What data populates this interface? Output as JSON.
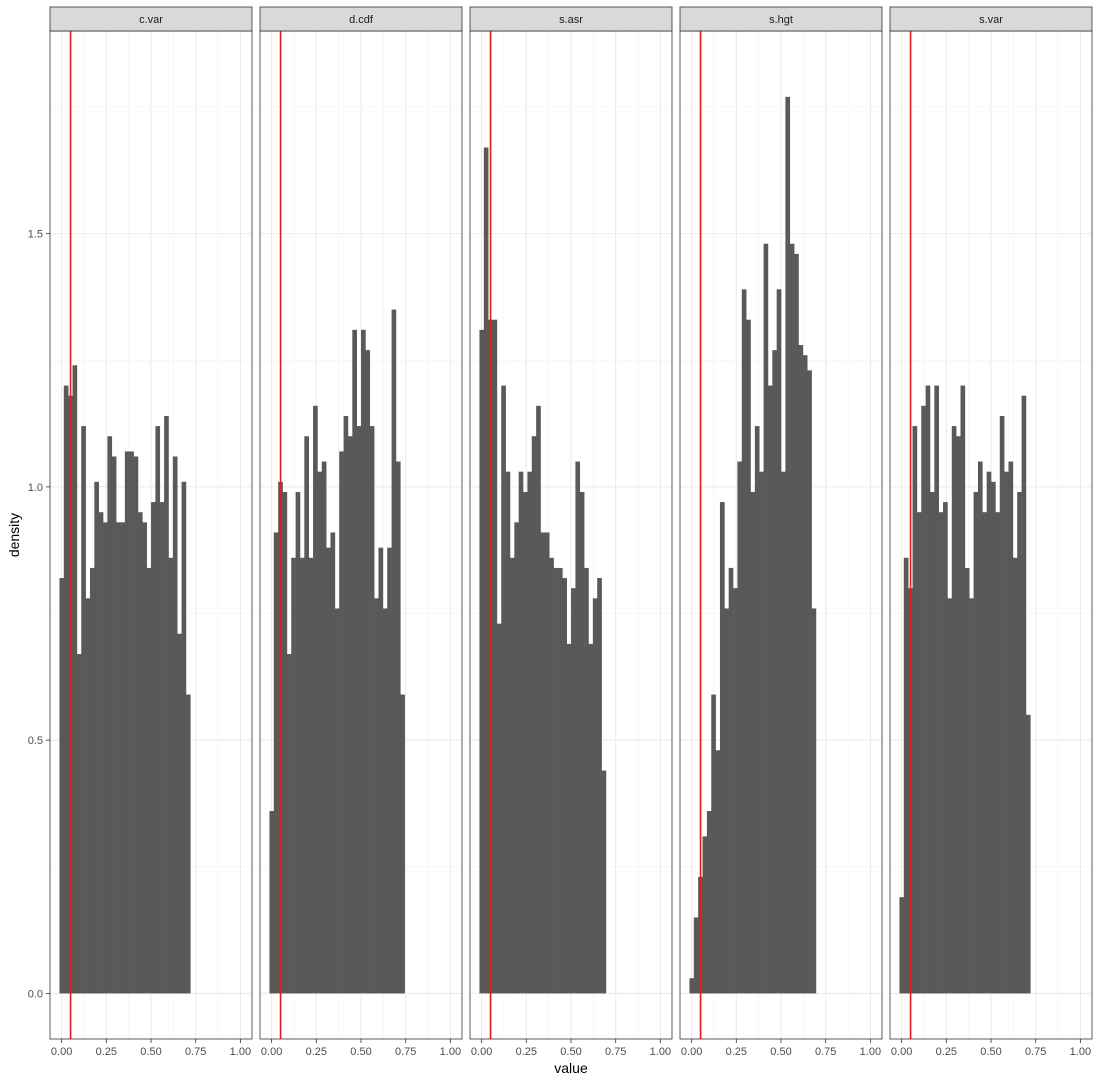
{
  "chart_data": {
    "type": "bar",
    "facet_type": "histogram",
    "xlabel": "value",
    "ylabel": "density",
    "x_ticks": [
      "0.00",
      "0.25",
      "0.50",
      "0.75",
      "1.00"
    ],
    "y_ticks": [
      "0.0",
      "0.5",
      "1.0",
      "1.5"
    ],
    "xlim": [
      -0.065,
      1.065
    ],
    "ylim": [
      -0.09,
      1.9
    ],
    "bin_width": 0.0244,
    "bin_start": -0.0122,
    "vline_x": 0.05,
    "vline_color": "#e41a1c",
    "bar_color": "#595959",
    "grid": true,
    "panels": [
      {
        "name": "c.var",
        "values": [
          0.82,
          1.2,
          1.18,
          1.24,
          0.67,
          1.12,
          0.78,
          0.84,
          1.01,
          0.95,
          0.93,
          1.1,
          1.06,
          0.93,
          0.93,
          1.07,
          1.07,
          1.06,
          0.95,
          0.93,
          0.84,
          0.97,
          1.12,
          0.97,
          1.14,
          0.86,
          1.06,
          0.71,
          1.01,
          0.59,
          0,
          0,
          0,
          0,
          0,
          0,
          0,
          0,
          0,
          0,
          0,
          0
        ]
      },
      {
        "name": "d.cdf",
        "values": [
          0.36,
          0.91,
          1.01,
          0.99,
          0.67,
          0.86,
          0.99,
          0.86,
          1.1,
          0.86,
          1.16,
          1.03,
          1.05,
          0.88,
          0.91,
          0.76,
          1.07,
          1.14,
          1.1,
          1.31,
          1.12,
          1.31,
          1.27,
          1.12,
          0.78,
          0.88,
          0.76,
          0.88,
          1.35,
          1.05,
          0.59,
          0,
          0,
          0,
          0,
          0,
          0,
          0,
          0,
          0,
          0,
          0
        ]
      },
      {
        "name": "s.asr",
        "values": [
          1.31,
          1.67,
          1.33,
          1.33,
          0.73,
          1.2,
          1.03,
          0.86,
          0.93,
          1.03,
          0.99,
          1.03,
          1.1,
          1.16,
          0.91,
          0.91,
          0.86,
          0.84,
          0.84,
          0.82,
          0.69,
          0.8,
          1.05,
          0.99,
          0.84,
          0.69,
          0.78,
          0.82,
          0.44,
          0,
          0,
          0,
          0,
          0,
          0,
          0,
          0,
          0,
          0,
          0,
          0,
          0
        ]
      },
      {
        "name": "s.hgt",
        "values": [
          0.03,
          0.15,
          0.23,
          0.31,
          0.36,
          0.59,
          0.48,
          0.97,
          0.76,
          0.84,
          0.8,
          1.05,
          1.39,
          1.33,
          0.99,
          1.12,
          1.03,
          1.48,
          1.2,
          1.27,
          1.39,
          1.03,
          1.77,
          1.48,
          1.46,
          1.28,
          1.26,
          1.23,
          0.76,
          0,
          0,
          0,
          0,
          0,
          0,
          0,
          0,
          0,
          0,
          0,
          0,
          0
        ]
      },
      {
        "name": "s.var",
        "values": [
          0.19,
          0.86,
          0.8,
          1.12,
          0.95,
          1.16,
          1.2,
          0.99,
          1.2,
          0.95,
          0.97,
          0.78,
          1.12,
          1.1,
          1.2,
          0.84,
          0.78,
          0.99,
          1.05,
          0.95,
          1.03,
          1.01,
          0.95,
          1.14,
          1.03,
          1.05,
          0.86,
          0.99,
          1.18,
          0.55,
          0,
          0,
          0,
          0,
          0,
          0,
          0,
          0,
          0,
          0,
          0,
          0
        ]
      }
    ]
  }
}
